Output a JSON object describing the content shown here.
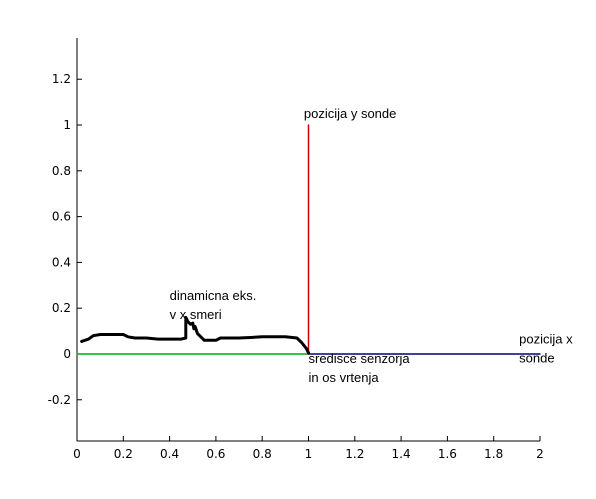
{
  "chart_data": {
    "type": "line",
    "xlim": [
      0,
      2
    ],
    "ylim": [
      -0.38,
      1.38
    ],
    "x_ticks": [
      "0",
      "0.2",
      "0.4",
      "0.6",
      "0.8",
      "1",
      "1.2",
      "1.4",
      "1.6",
      "1.8",
      "2"
    ],
    "y_ticks": [
      "-0.2",
      "0",
      "0.2",
      "0.4",
      "0.6",
      "0.8",
      "1",
      "1.2"
    ],
    "x_tick_values": [
      0,
      0.2,
      0.4,
      0.6,
      0.8,
      1,
      1.2,
      1.4,
      1.6,
      1.8,
      2
    ],
    "y_tick_values": [
      -0.2,
      0,
      0.2,
      0.4,
      0.6,
      0.8,
      1,
      1.2
    ],
    "grid": false,
    "series": [
      {
        "color": "#cc0000",
        "x": [
          1,
          1
        ],
        "y": [
          0,
          1
        ]
      },
      {
        "color": "#00aa00",
        "x": [
          0,
          1
        ],
        "y": [
          0,
          0
        ]
      },
      {
        "color": "#000080",
        "x": [
          1,
          2
        ],
        "y": [
          0,
          0
        ]
      },
      {
        "color": "#000000",
        "style": "hand-drawn",
        "x": [
          0.02,
          0.05,
          0.07,
          0.1,
          0.15,
          0.2,
          0.22,
          0.25,
          0.3,
          0.35,
          0.4,
          0.45,
          0.47,
          0.47,
          0.48,
          0.49,
          0.5,
          0.505,
          0.51,
          0.52,
          0.55,
          0.6,
          0.62,
          0.65,
          0.7,
          0.75,
          0.8,
          0.85,
          0.9,
          0.95,
          0.97,
          0.99,
          1.0
        ],
        "y": [
          0.055,
          0.065,
          0.08,
          0.085,
          0.085,
          0.085,
          0.075,
          0.07,
          0.07,
          0.065,
          0.065,
          0.065,
          0.07,
          0.16,
          0.14,
          0.13,
          0.135,
          0.11,
          0.12,
          0.09,
          0.06,
          0.06,
          0.07,
          0.07,
          0.07,
          0.072,
          0.075,
          0.075,
          0.075,
          0.07,
          0.05,
          0.025,
          0.005
        ]
      }
    ],
    "annotations": [
      {
        "lines": [
          "pozicija y sonde"
        ],
        "x": 0.98,
        "y": 1.03
      },
      {
        "lines": [
          "dinamicna eks.",
          "v x smeri"
        ],
        "x": 0.4,
        "y": 0.235
      },
      {
        "lines": [
          "sredisce senzorja",
          "in os vrtenja"
        ],
        "x": 1.0,
        "y": -0.04
      },
      {
        "lines": [
          "pozicija x",
          "sonde"
        ],
        "x": 1.91,
        "y": 0.045
      }
    ]
  }
}
